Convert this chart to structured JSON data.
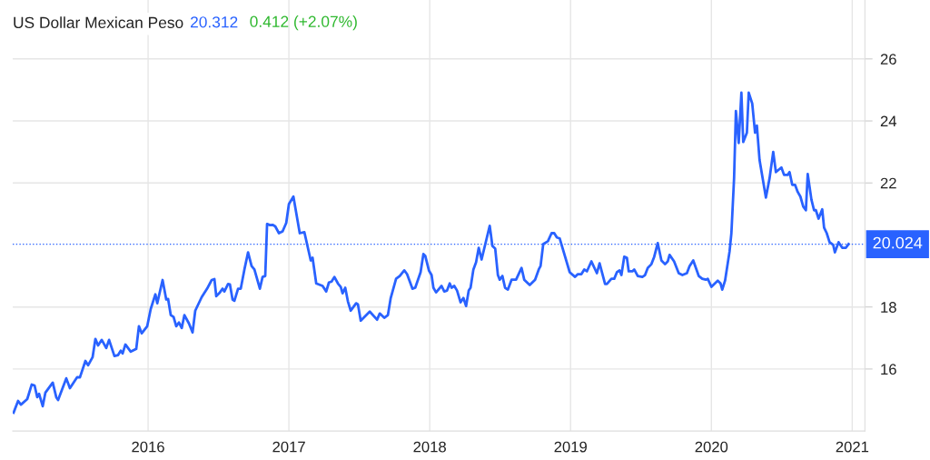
{
  "chart_data": {
    "type": "line",
    "title": "US Dollar Mexican Peso",
    "annotations": [
      "20.312",
      "0.412 (+2.07%)"
    ],
    "xlim": [
      2015.039,
      2021.09
    ],
    "xticks": [
      2016,
      2017,
      2018,
      2019,
      2020,
      2021
    ],
    "ylim": [
      14,
      27.9
    ],
    "yticks": [
      16,
      18,
      22,
      24,
      26
    ],
    "grid": true,
    "legend": false,
    "marker": "none",
    "line_style": "solid",
    "ref_lines": [
      {
        "axis": "y",
        "value": 20.024,
        "label": "20.024",
        "color": "#2962ff",
        "line_style": "dotted"
      }
    ],
    "series": [
      {
        "color": "#2962ff",
        "x": [
          2015.045,
          2015.077,
          2015.097,
          2015.142,
          2015.174,
          2015.194,
          2015.213,
          2015.226,
          2015.252,
          2015.271,
          2015.323,
          2015.348,
          2015.361,
          2015.419,
          2015.445,
          2015.497,
          2015.516,
          2015.555,
          2015.574,
          2015.606,
          2015.626,
          2015.645,
          2015.671,
          2015.703,
          2015.723,
          2015.761,
          2015.787,
          2015.806,
          2015.819,
          2015.839,
          2015.877,
          2015.916,
          2015.935,
          2015.955,
          2015.994,
          2016.019,
          2016.052,
          2016.065,
          2016.103,
          2016.129,
          2016.142,
          2016.161,
          2016.181,
          2016.2,
          2016.219,
          2016.239,
          2016.258,
          2016.29,
          2016.316,
          2016.335,
          2016.381,
          2016.419,
          2016.452,
          2016.471,
          2016.484,
          2016.51,
          2016.529,
          2016.542,
          2016.568,
          2016.581,
          2016.6,
          2016.613,
          2016.639,
          2016.658,
          2016.684,
          2016.71,
          2016.735,
          2016.755,
          2016.794,
          2016.813,
          2016.832,
          2016.845,
          2016.865,
          2016.884,
          2016.903,
          2016.929,
          2016.955,
          2016.981,
          2017.0,
          2017.032,
          2017.077,
          2017.11,
          2017.155,
          2017.168,
          2017.194,
          2017.239,
          2017.265,
          2017.284,
          2017.303,
          2017.323,
          2017.348,
          2017.368,
          2017.381,
          2017.4,
          2017.419,
          2017.439,
          2017.477,
          2017.49,
          2017.51,
          2017.574,
          2017.626,
          2017.645,
          2017.677,
          2017.703,
          2017.723,
          2017.761,
          2017.787,
          2017.819,
          2017.839,
          2017.877,
          2017.897,
          2017.935,
          2017.955,
          2017.968,
          2017.994,
          2018.013,
          2018.026,
          2018.045,
          2018.084,
          2018.103,
          2018.123,
          2018.142,
          2018.155,
          2018.174,
          2018.194,
          2018.219,
          2018.239,
          2018.258,
          2018.277,
          2018.29,
          2018.31,
          2018.329,
          2018.348,
          2018.368,
          2018.426,
          2018.445,
          2018.465,
          2018.484,
          2018.497,
          2018.516,
          2018.535,
          2018.555,
          2018.581,
          2018.613,
          2018.652,
          2018.671,
          2018.71,
          2018.748,
          2018.774,
          2018.787,
          2018.806,
          2018.839,
          2018.865,
          2018.884,
          2018.903,
          2018.923,
          2018.994,
          2019.032,
          2019.052,
          2019.077,
          2019.097,
          2019.116,
          2019.148,
          2019.187,
          2019.206,
          2019.245,
          2019.258,
          2019.29,
          2019.31,
          2019.329,
          2019.348,
          2019.361,
          2019.381,
          2019.4,
          2019.413,
          2019.439,
          2019.452,
          2019.477,
          2019.51,
          2019.529,
          2019.548,
          2019.574,
          2019.594,
          2019.619,
          2019.645,
          2019.671,
          2019.69,
          2019.703,
          2019.735,
          2019.768,
          2019.794,
          2019.826,
          2019.845,
          2019.871,
          2019.91,
          2019.935,
          2019.961,
          2019.974,
          2020.0,
          2020.045,
          2020.065,
          2020.077,
          2020.097,
          2020.129,
          2020.142,
          2020.161,
          2020.174,
          2020.194,
          2020.213,
          2020.226,
          2020.252,
          2020.265,
          2020.29,
          2020.31,
          2020.323,
          2020.342,
          2020.387,
          2020.413,
          2020.439,
          2020.458,
          2020.497,
          2020.516,
          2020.542,
          2020.555,
          2020.574,
          2020.594,
          2020.613,
          2020.632,
          2020.652,
          2020.671,
          2020.684,
          2020.71,
          2020.729,
          2020.742,
          2020.761,
          2020.787,
          2020.8,
          2020.819,
          2020.839,
          2020.865,
          2020.877,
          2020.903,
          2020.929,
          2020.955,
          2020.974
        ],
        "values": [
          14.59,
          14.97,
          14.85,
          15.03,
          15.5,
          15.47,
          15.09,
          15.2,
          14.8,
          15.24,
          15.56,
          15.09,
          15.0,
          15.7,
          15.38,
          15.74,
          15.73,
          16.26,
          16.12,
          16.38,
          16.97,
          16.76,
          16.94,
          16.68,
          16.94,
          16.42,
          16.45,
          16.59,
          16.5,
          16.79,
          16.56,
          16.65,
          17.38,
          17.15,
          17.38,
          17.94,
          18.41,
          18.12,
          18.87,
          18.24,
          18.26,
          17.74,
          17.68,
          17.38,
          17.5,
          17.32,
          17.74,
          17.47,
          17.18,
          17.88,
          18.32,
          18.59,
          18.87,
          18.9,
          18.35,
          18.47,
          18.59,
          18.5,
          18.74,
          18.73,
          18.24,
          18.2,
          18.59,
          18.59,
          19.21,
          19.76,
          19.32,
          19.21,
          18.59,
          18.97,
          19.0,
          20.68,
          20.64,
          20.65,
          20.6,
          20.38,
          20.44,
          20.71,
          21.32,
          21.56,
          20.38,
          20.41,
          19.5,
          19.59,
          18.76,
          18.68,
          18.5,
          18.79,
          18.82,
          18.97,
          18.76,
          18.65,
          18.44,
          18.62,
          18.18,
          17.88,
          18.12,
          18.09,
          17.56,
          17.85,
          17.59,
          17.79,
          17.65,
          17.74,
          18.29,
          18.91,
          19.0,
          19.18,
          19.06,
          18.59,
          18.62,
          19.12,
          19.71,
          19.65,
          19.18,
          19.03,
          18.62,
          18.47,
          18.68,
          18.5,
          18.53,
          18.76,
          18.62,
          18.68,
          18.53,
          18.15,
          18.29,
          18.03,
          18.53,
          18.62,
          19.21,
          19.44,
          19.91,
          19.53,
          20.62,
          19.97,
          19.88,
          19.03,
          18.88,
          19.0,
          18.62,
          18.56,
          18.88,
          18.88,
          19.26,
          18.88,
          18.71,
          18.88,
          19.21,
          19.32,
          20.03,
          20.12,
          20.38,
          20.38,
          20.24,
          20.21,
          19.12,
          18.97,
          19.06,
          19.06,
          19.21,
          19.15,
          19.47,
          19.09,
          19.41,
          18.74,
          18.74,
          18.91,
          18.91,
          19.12,
          19.18,
          19.03,
          19.62,
          19.59,
          19.15,
          19.15,
          19.21,
          19.0,
          18.97,
          19.03,
          19.26,
          19.38,
          19.62,
          20.06,
          19.5,
          19.38,
          19.47,
          19.68,
          19.47,
          19.09,
          19.03,
          19.09,
          19.32,
          19.5,
          19.0,
          18.91,
          18.88,
          18.91,
          18.65,
          18.85,
          18.76,
          18.56,
          18.85,
          19.79,
          20.38,
          22.15,
          24.32,
          23.29,
          24.91,
          23.32,
          23.62,
          24.91,
          24.56,
          23.62,
          23.85,
          22.74,
          21.53,
          22.15,
          23.0,
          22.35,
          22.5,
          22.26,
          22.26,
          22.35,
          21.94,
          21.94,
          21.71,
          21.56,
          21.24,
          21.12,
          22.29,
          21.47,
          21.12,
          21.12,
          20.85,
          21.15,
          20.56,
          20.38,
          20.09,
          20.0,
          19.76,
          20.09,
          19.91,
          19.91,
          20.03
        ]
      }
    ]
  }
}
